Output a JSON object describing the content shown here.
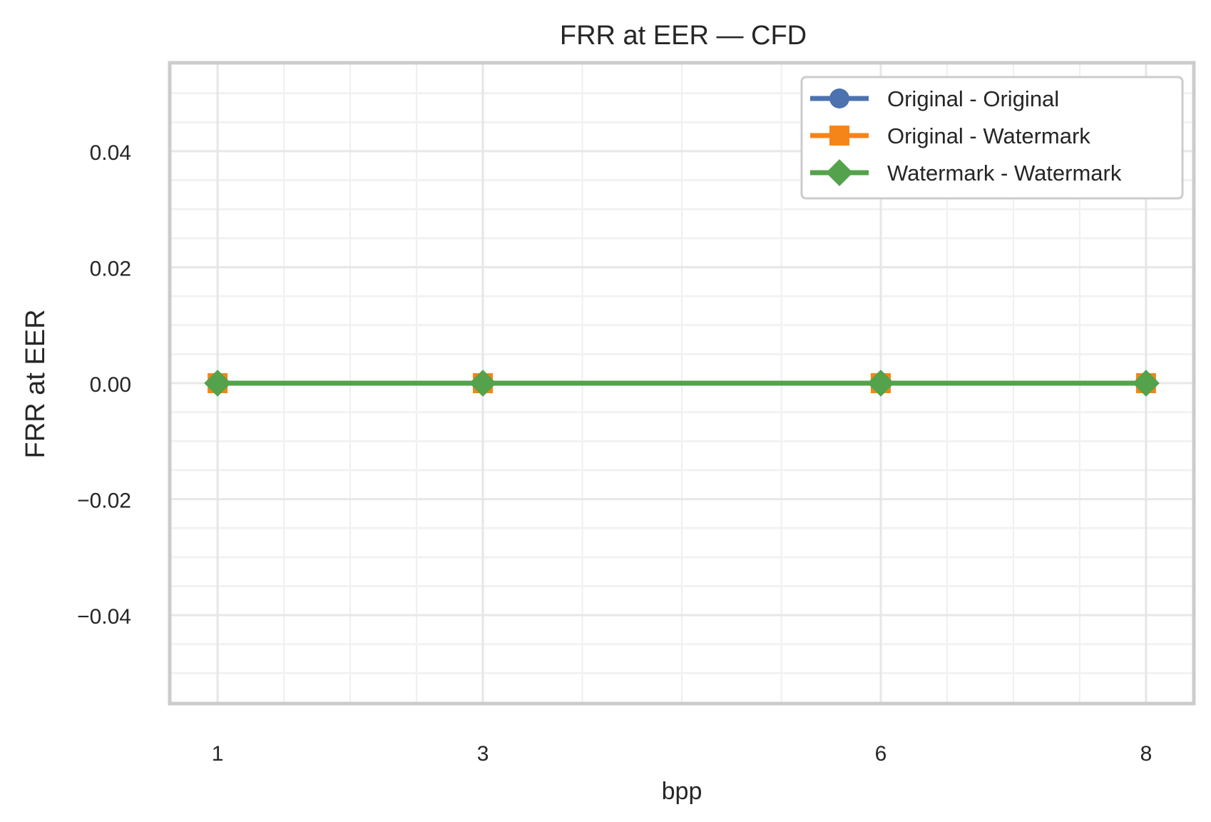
{
  "chart_data": {
    "type": "line",
    "title": "FRR at EER — CFD",
    "xlabel": "bpp",
    "ylabel": "FRR at EER",
    "x": [
      1,
      3,
      6,
      8
    ],
    "xticks": [
      "1",
      "3",
      "6",
      "8"
    ],
    "yticks": [
      -0.04,
      -0.02,
      0.0,
      0.02,
      0.04
    ],
    "ytick_labels": [
      "−0.04",
      "−0.02",
      "0.00",
      "0.02",
      "0.04"
    ],
    "xlim": [
      0.65,
      8.35
    ],
    "ylim": [
      -0.055,
      0.055
    ],
    "grid": true,
    "legend_position": "top-right",
    "series": [
      {
        "name": "Original - Original",
        "values": [
          0,
          0,
          0,
          0
        ],
        "color": "#4c72b0",
        "marker": "circle"
      },
      {
        "name": "Original - Watermark",
        "values": [
          0,
          0,
          0,
          0
        ],
        "color": "#f58518",
        "marker": "square"
      },
      {
        "name": "Watermark - Watermark",
        "values": [
          0,
          0,
          0,
          0
        ],
        "color": "#54a24b",
        "marker": "diamond"
      }
    ]
  }
}
